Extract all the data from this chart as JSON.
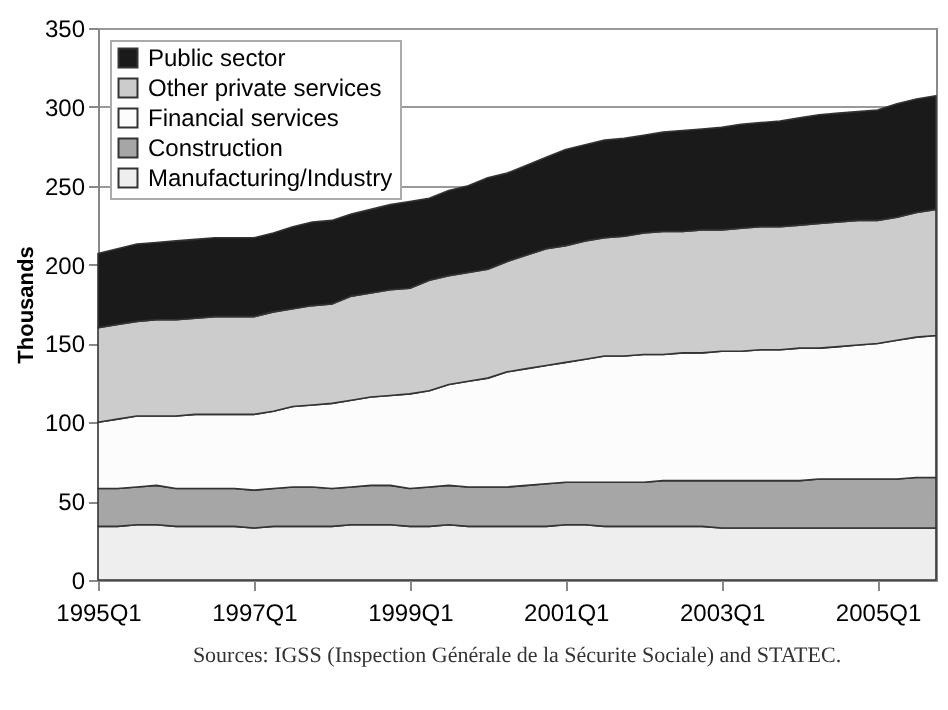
{
  "chart_data": {
    "type": "area",
    "stacked": true,
    "ylabel": "Thousands",
    "annotations": [
      "Sources: IGSS (Inspection Générale de la Sécurite Sociale) and STATEC."
    ],
    "categories": [
      "1995Q1",
      null,
      null,
      null,
      null,
      null,
      null,
      null,
      "1997Q1",
      null,
      null,
      null,
      null,
      null,
      null,
      null,
      "1999Q1",
      null,
      null,
      null,
      null,
      null,
      null,
      null,
      "2001Q1",
      null,
      null,
      null,
      null,
      null,
      null,
      null,
      "2003Q1",
      null,
      null,
      null,
      null,
      null,
      null,
      null,
      "2005Q1",
      null,
      null,
      null
    ],
    "series": [
      {
        "name": "Manufacturing/Industry",
        "color": "#eeeeee",
        "values": [
          34,
          34,
          35,
          35,
          34,
          34,
          34,
          34,
          33,
          34,
          34,
          34,
          34,
          35,
          35,
          35,
          34,
          34,
          35,
          34,
          34,
          34,
          34,
          34,
          35,
          35,
          34,
          34,
          34,
          34,
          34,
          34,
          33,
          33,
          33,
          33,
          33,
          33,
          33,
          33,
          33,
          33,
          33,
          33
        ]
      },
      {
        "name": "Construction",
        "color": "#a6a6a6",
        "values": [
          24,
          24,
          24,
          25,
          24,
          24,
          24,
          24,
          24,
          24,
          25,
          25,
          24,
          24,
          25,
          25,
          24,
          25,
          25,
          25,
          25,
          25,
          26,
          27,
          27,
          27,
          28,
          28,
          28,
          29,
          29,
          29,
          30,
          30,
          30,
          30,
          30,
          31,
          31,
          31,
          31,
          31,
          32,
          32
        ]
      },
      {
        "name": "Financial services",
        "color": "#fcfcfc",
        "values": [
          42,
          44,
          45,
          44,
          46,
          47,
          47,
          47,
          48,
          49,
          51,
          52,
          54,
          55,
          56,
          57,
          60,
          61,
          64,
          67,
          69,
          73,
          74,
          75,
          76,
          78,
          80,
          80,
          81,
          80,
          81,
          81,
          82,
          82,
          83,
          83,
          84,
          83,
          84,
          85,
          86,
          88,
          89,
          90
        ]
      },
      {
        "name": "Other private services",
        "color": "#cccccc",
        "values": [
          60,
          60,
          60,
          61,
          61,
          61,
          62,
          62,
          62,
          63,
          62,
          63,
          63,
          66,
          66,
          67,
          67,
          70,
          69,
          69,
          69,
          70,
          72,
          74,
          74,
          75,
          75,
          76,
          77,
          78,
          77,
          78,
          77,
          78,
          78,
          78,
          78,
          79,
          79,
          79,
          78,
          78,
          79,
          80
        ]
      },
      {
        "name": "Public sector",
        "color": "#1a1a1a",
        "values": [
          47,
          48,
          49,
          49,
          50,
          50,
          50,
          50,
          50,
          50,
          52,
          53,
          53,
          52,
          53,
          54,
          55,
          52,
          54,
          55,
          58,
          56,
          57,
          58,
          61,
          61,
          62,
          62,
          62,
          63,
          64,
          64,
          65,
          66,
          66,
          67,
          68,
          69,
          69,
          69,
          70,
          72,
          72,
          72
        ]
      }
    ],
    "ylim": [
      0,
      350
    ],
    "yticks": [
      0,
      50,
      100,
      150,
      200,
      250,
      300,
      350
    ],
    "grid": "y",
    "legend": "top left"
  }
}
